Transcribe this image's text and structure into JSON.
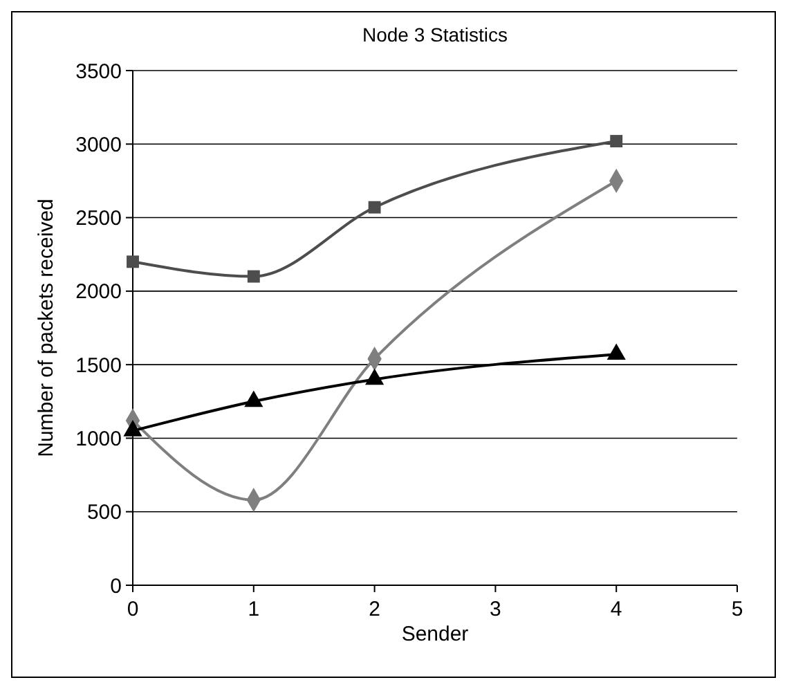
{
  "chart_data": {
    "type": "line",
    "title": "Node 3 Statistics",
    "xlabel": "Sender",
    "ylabel": "Number of packets received",
    "x": [
      0,
      1,
      2,
      4
    ],
    "xlim": [
      0,
      5
    ],
    "xticks": [
      0,
      1,
      2,
      3,
      4,
      5
    ],
    "ylim": [
      0,
      3500
    ],
    "yticks": [
      0,
      500,
      1000,
      1500,
      2000,
      2500,
      3000,
      3500
    ],
    "grid": "y",
    "series": [
      {
        "color": "#7f7f7f",
        "marker": "diamond",
        "values": [
          1120,
          580,
          1540,
          2750
        ]
      },
      {
        "color": "#4d4d4d",
        "marker": "square",
        "values": [
          2200,
          2100,
          2570,
          3020
        ]
      },
      {
        "color": "#000000",
        "marker": "triangle",
        "values": [
          1050,
          1250,
          1400,
          1570
        ]
      }
    ]
  }
}
